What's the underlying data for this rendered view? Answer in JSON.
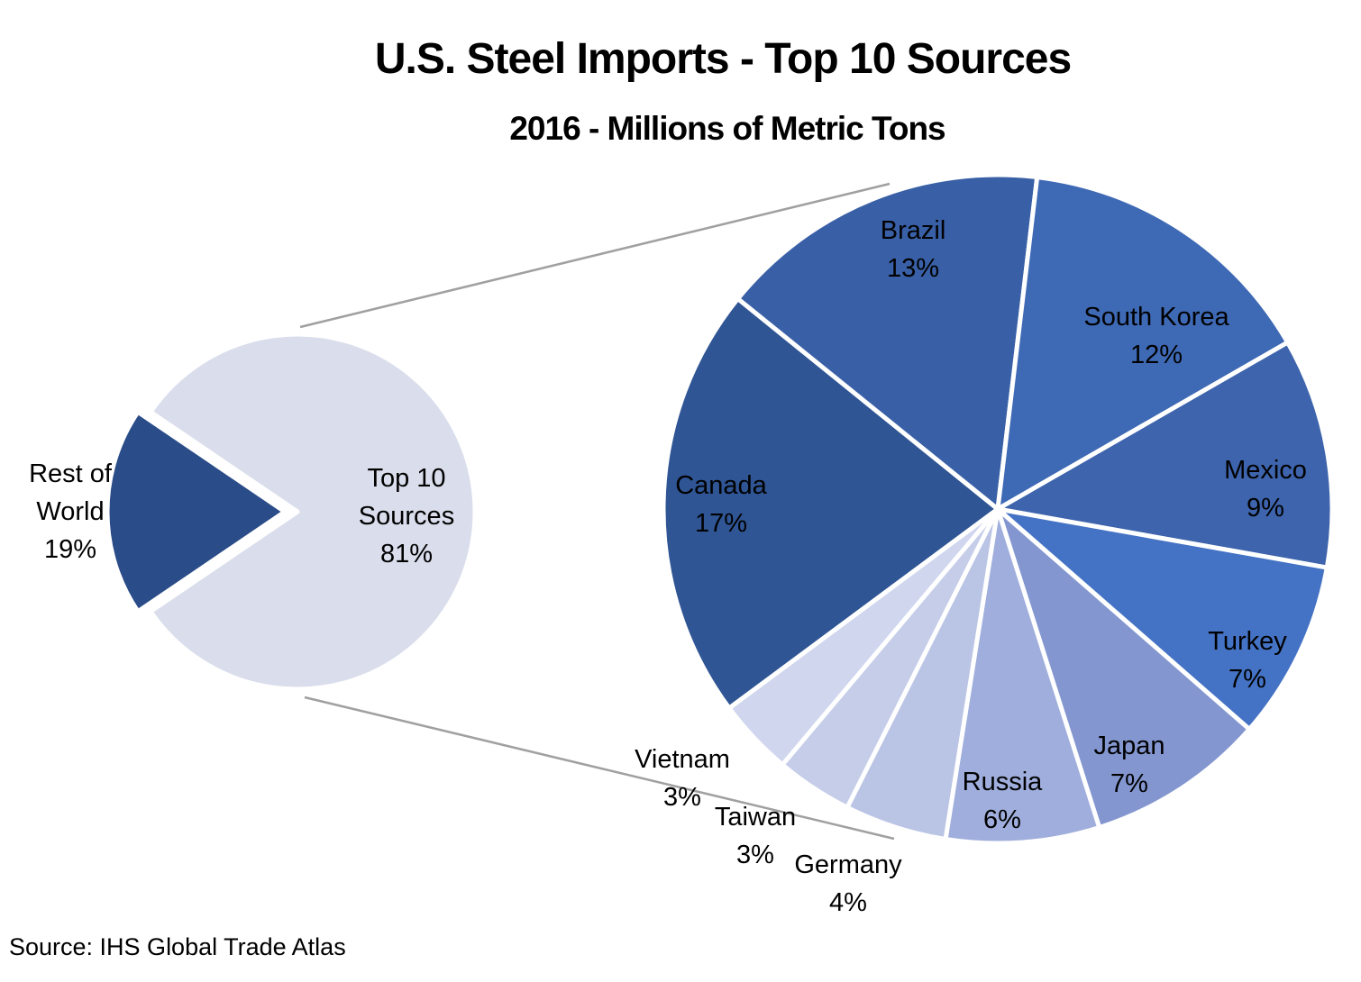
{
  "title": "U.S. Steel Imports - Top 10 Sources",
  "subtitle": "2016 - Millions of Metric Tons",
  "source": "Source: IHS Global Trade Atlas",
  "chart_data": {
    "type": "pie",
    "variant": "pie-of-pie",
    "title": "U.S. Steel Imports - Top 10 Sources",
    "subtitle": "2016 - Millions of Metric Tons",
    "units": "percent share of U.S. steel imports, 2016, millions of metric tons",
    "legend": "none",
    "colors": {
      "connector_line": "#A0A0A0",
      "slice_border": "#FFFFFF"
    },
    "primary_pie": {
      "description": "small overview pie (left)",
      "start_angle": 304.2,
      "slices": [
        {
          "label": "Top 10",
          "label2": "Sources",
          "pct_label": "81%",
          "value": 81,
          "color": "#DADEEC",
          "explode": 0
        },
        {
          "label": "Rest of",
          "label2": "World",
          "pct_label": "19%",
          "value": 19,
          "color": "#2A4C88",
          "explode": 14
        }
      ]
    },
    "secondary_pie": {
      "description": "breakdown of Top 10 Sources (right), slice angles scaled to 81% total",
      "start_angle": 233.43,
      "slices": [
        {
          "label": "Canada",
          "pct_label": "17%",
          "value": 17,
          "color": "#2F5594"
        },
        {
          "label": "Brazil",
          "pct_label": "13%",
          "value": 13,
          "color": "#3960A6"
        },
        {
          "label": "South Korea",
          "pct_label": "12%",
          "value": 12,
          "color": "#3E69B4"
        },
        {
          "label": "Mexico",
          "pct_label": "9%",
          "value": 9,
          "color": "#3D64AC"
        },
        {
          "label": "Turkey",
          "pct_label": "7%",
          "value": 7,
          "color": "#4472C4"
        },
        {
          "label": "Japan",
          "pct_label": "7%",
          "value": 7,
          "color": "#8396D0"
        },
        {
          "label": "Russia",
          "pct_label": "6%",
          "value": 6,
          "color": "#9FAEDC"
        },
        {
          "label": "Germany",
          "pct_label": "4%",
          "value": 4,
          "color": "#BAC4E4"
        },
        {
          "label": "Taiwan",
          "pct_label": "3%",
          "value": 3,
          "color": "#C5CDE9"
        },
        {
          "label": "Vietnam",
          "pct_label": "3%",
          "value": 3,
          "color": "#CFD6EE"
        }
      ]
    }
  }
}
